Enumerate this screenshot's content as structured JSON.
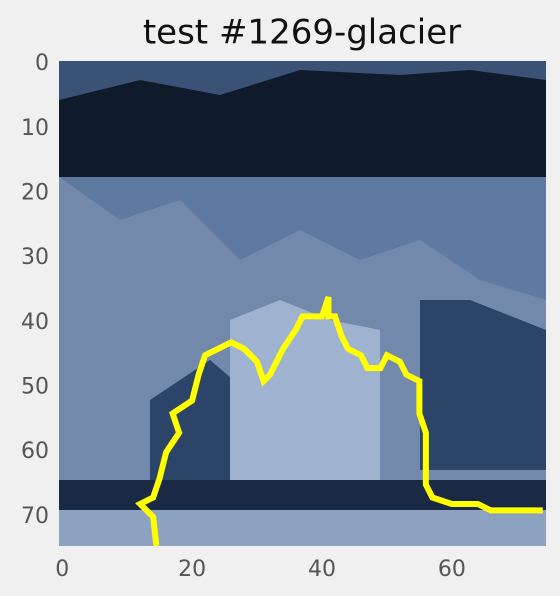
{
  "chart_data": {
    "type": "image",
    "title": "test #1269-glacier",
    "xlim": [
      -0.5,
      74.5
    ],
    "ylim": [
      74.5,
      -0.5
    ],
    "xticks": [
      0,
      20,
      40,
      60
    ],
    "yticks": [
      0,
      10,
      20,
      30,
      40,
      50,
      60,
      70
    ],
    "contour": {
      "color": "#ffff00",
      "x": [
        14.5,
        14,
        12,
        14,
        15,
        16,
        18,
        17,
        20,
        21,
        22,
        24,
        26,
        28,
        30,
        31,
        32,
        34,
        36,
        37,
        40,
        41,
        41,
        42,
        43,
        44,
        46,
        47,
        49,
        50,
        52,
        53,
        55,
        55,
        56,
        56,
        56,
        57,
        60,
        64,
        66,
        74
      ],
      "y": [
        74.5,
        70,
        68,
        67,
        64,
        60,
        57,
        54,
        52,
        48,
        45,
        44,
        43,
        44,
        46,
        49,
        48,
        44,
        41,
        39,
        39,
        36,
        39,
        39,
        42,
        44,
        45,
        47,
        47,
        45,
        46,
        48,
        49,
        54,
        57,
        62,
        65,
        67,
        68,
        68,
        69,
        69
      ]
    }
  }
}
